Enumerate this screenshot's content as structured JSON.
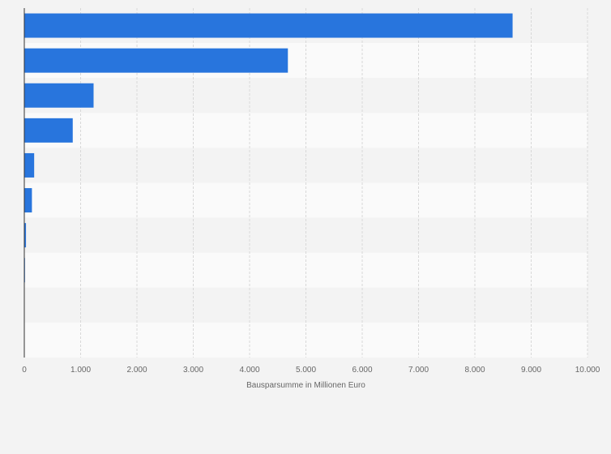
{
  "chart_data": {
    "type": "bar",
    "orientation": "horizontal",
    "categories": [
      "",
      "",
      "",
      "",
      "",
      "",
      "",
      "",
      "",
      ""
    ],
    "values": [
      8670,
      4680,
      1230,
      860,
      175,
      135,
      30,
      12,
      0,
      0
    ],
    "title": "",
    "xlabel": "Bausparsumme in Millionen Euro",
    "ylabel": "",
    "xlim": [
      0,
      10000
    ],
    "xticks": [
      0,
      1000,
      2000,
      3000,
      4000,
      5000,
      6000,
      7000,
      8000,
      9000,
      10000
    ],
    "xtick_labels": [
      "0",
      "1.000",
      "2.000",
      "3.000",
      "4.000",
      "5.000",
      "6.000",
      "7.000",
      "8.000",
      "9.000",
      "10.000"
    ],
    "grid": true,
    "legend": "none"
  },
  "colors": {
    "bar": "#2875dd",
    "band_dark": "#f3f3f3",
    "band_light": "#fafafa",
    "grid": "#d8d8d8",
    "axis": "#333333",
    "text": "#666666"
  }
}
